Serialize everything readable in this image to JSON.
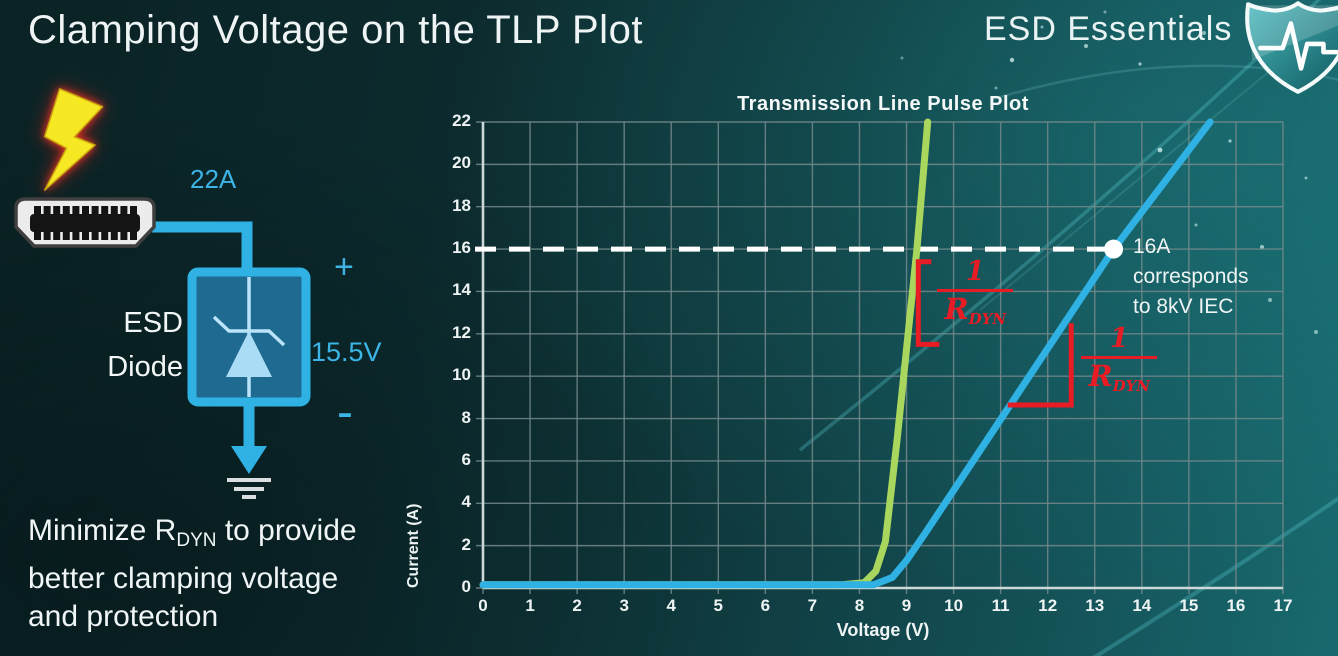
{
  "header": {
    "title": "Clamping Voltage on the TLP Plot",
    "brand": "ESD Essentials"
  },
  "diagram": {
    "surge_current_label": "22A",
    "device_line1": "ESD",
    "device_line2": "Diode",
    "plus_label": "+",
    "clamp_voltage_label": "15.5V",
    "minus_label": "-"
  },
  "note": {
    "line1_pre": "Minimize R",
    "line1_sub": "DYN",
    "line1_post": " to provide",
    "line2": "better clamping voltage",
    "line3": "and protection"
  },
  "chart_data": {
    "type": "line",
    "title": "Transmission Line Pulse Plot",
    "xlabel": "Voltage (V)",
    "ylabel": "Current (A)",
    "xlim": [
      0,
      17
    ],
    "ylim": [
      0,
      22
    ],
    "xticks": [
      0,
      1,
      2,
      3,
      4,
      5,
      6,
      7,
      8,
      9,
      10,
      11,
      12,
      13,
      14,
      15,
      16,
      17
    ],
    "yticks": [
      0,
      2,
      4,
      6,
      8,
      10,
      12,
      14,
      16,
      18,
      20,
      22
    ],
    "grid": true,
    "series": [
      {
        "name": "green-curve-low-rdyn",
        "color": "#a9d75e",
        "points": [
          [
            0,
            0.15
          ],
          [
            7.6,
            0.15
          ],
          [
            8.1,
            0.25
          ],
          [
            8.35,
            0.8
          ],
          [
            8.55,
            2.2
          ],
          [
            8.8,
            7
          ],
          [
            9.22,
            16
          ],
          [
            9.45,
            22
          ]
        ]
      },
      {
        "name": "blue-curve-high-rdyn",
        "color": "#2fb1e3",
        "points": [
          [
            0,
            0.15
          ],
          [
            8.3,
            0.15
          ],
          [
            8.7,
            0.5
          ],
          [
            9.0,
            1.3
          ],
          [
            9.4,
            2.6
          ],
          [
            13.4,
            16
          ],
          [
            15.45,
            22
          ]
        ]
      }
    ],
    "reference_line": {
      "y": 16,
      "style": "dashed",
      "color": "#ffffff"
    },
    "marker": {
      "x": 13.4,
      "y": 16,
      "color": "#ffffff",
      "label_line1": "16A corresponds",
      "label_line2": "to 8kV IEC"
    },
    "annotations": [
      {
        "kind": "rise-bracket",
        "num": "1",
        "den_main": "R",
        "den_sub": "DYN",
        "color": "#e81c24",
        "x": 9.25,
        "y_bottom": 11.5,
        "y_top": 15.4
      },
      {
        "kind": "slope-triangle",
        "num": "1",
        "den_main": "R",
        "den_sub": "DYN",
        "color": "#e81c24",
        "x_left": 11.15,
        "x_right": 12.5,
        "y": 8.64,
        "y_top": 12.5
      }
    ]
  },
  "colors": {
    "accent_blue": "#3cb4e5",
    "curve_green": "#a9d75e",
    "curve_blue": "#2fb1e3",
    "annotation_red": "#e81c24",
    "background_teal": "#0e3236",
    "grid_gray": "#74898b",
    "text_white": "#f2f6f6"
  }
}
